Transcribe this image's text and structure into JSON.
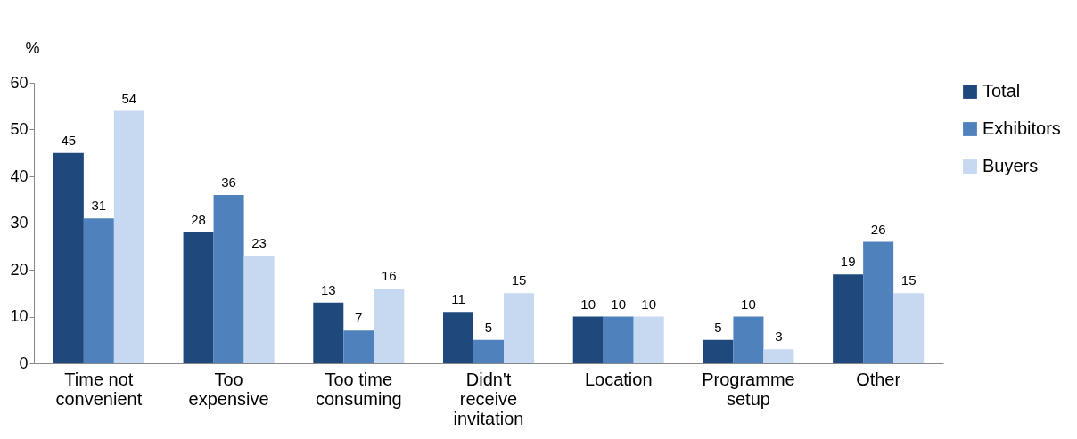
{
  "chart_data": {
    "type": "bar",
    "ylabel": "%",
    "categories": [
      "Time not convenient",
      "Too expensive",
      "Too time consuming",
      "Didn't receive invitation",
      "Location",
      "Programme setup",
      "Other"
    ],
    "series": [
      {
        "name": "Total",
        "color": "#1f497d",
        "values": [
          45,
          28,
          13,
          11,
          10,
          5,
          19
        ]
      },
      {
        "name": "Exhibitors",
        "color": "#4f81bd",
        "values": [
          31,
          36,
          7,
          5,
          10,
          10,
          26
        ]
      },
      {
        "name": "Buyers",
        "color": "#c6d9f1",
        "values": [
          54,
          23,
          16,
          15,
          10,
          3,
          15
        ]
      }
    ],
    "ylim": [
      0,
      60
    ],
    "yticks": [
      0,
      10,
      20,
      30,
      40,
      50,
      60
    ],
    "grid": false,
    "legend": "right",
    "data_labels": true
  }
}
